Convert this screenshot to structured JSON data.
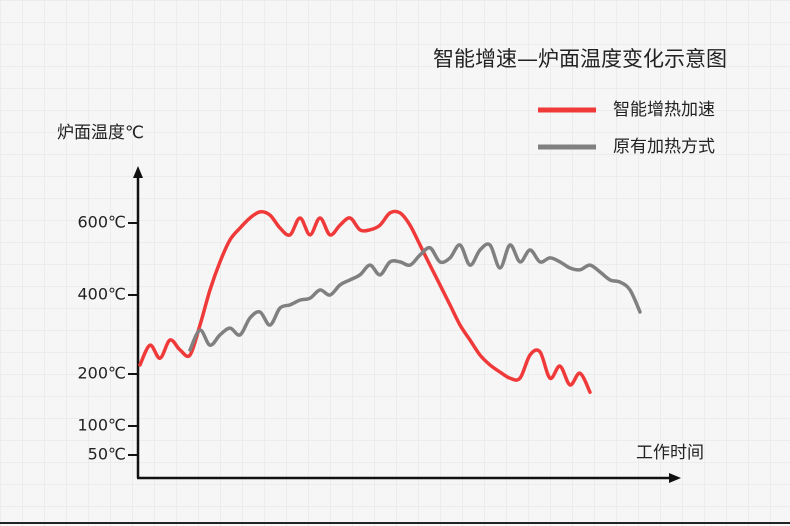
{
  "chart_data": {
    "type": "line",
    "title": "智能增速—炉面温度变化示意图",
    "y_label": "炉面温度℃",
    "x_label": "工作时间",
    "yticks": [
      {
        "value": 50,
        "label": "50℃"
      },
      {
        "value": 100,
        "label": "100℃"
      },
      {
        "value": 200,
        "label": "200℃"
      },
      {
        "value": 400,
        "label": "400℃"
      },
      {
        "value": 600,
        "label": "600℃"
      }
    ],
    "series": [
      {
        "name": "智能增热加速",
        "color": "#f03a3a",
        "values": [
          223,
          273,
          240,
          286,
          261,
          248,
          324,
          414,
          492,
          553,
          586,
          614,
          631,
          622,
          586,
          567,
          614,
          567,
          614,
          567,
          594,
          614,
          581,
          581,
          594,
          628,
          628,
          594,
          539,
          483,
          428,
          375,
          324,
          286,
          248,
          223,
          205,
          192,
          192,
          248,
          256,
          192,
          220,
          179,
          202,
          165,
          null,
          null,
          null,
          null,
          null
        ]
      },
      {
        "name": "原有加热方式",
        "color": "#808080",
        "values": [
          null,
          null,
          null,
          null,
          null,
          261,
          311,
          273,
          299,
          316,
          299,
          342,
          357,
          324,
          367,
          375,
          387,
          392,
          414,
          400,
          428,
          442,
          456,
          483,
          456,
          492,
          492,
          483,
          511,
          531,
          492,
          503,
          539,
          483,
          525,
          539,
          475,
          539,
          492,
          525,
          492,
          503,
          492,
          475,
          470,
          483,
          464,
          442,
          436,
          414,
          357
        ]
      }
    ]
  }
}
